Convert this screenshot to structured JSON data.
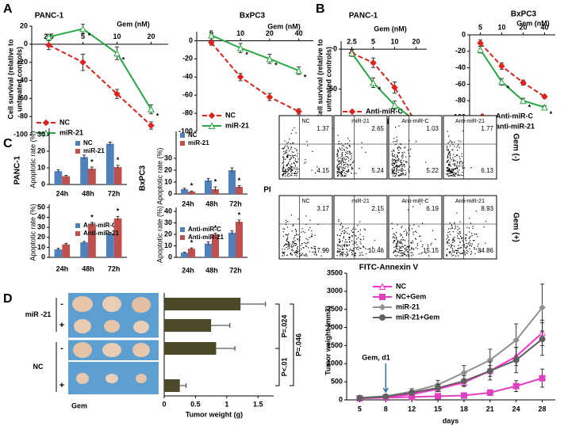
{
  "panels": [
    "A",
    "B",
    "C",
    "D"
  ],
  "flow": {
    "y_label": "PI",
    "x_label": "FITC-Annexin V",
    "rows": [
      {
        "label": "Gem (-)",
        "plots": [
          {
            "name": "NC",
            "upper_right": 1.37,
            "lower_right": 4.15
          },
          {
            "name": "miR-21",
            "upper_right": 2.65,
            "lower_right": 5.24
          },
          {
            "name": "Anti-miR-C",
            "upper_right": 1.03,
            "lower_right": 5.22
          },
          {
            "name": "Anti-miR-21",
            "upper_right": 1.77,
            "lower_right": 6.13
          }
        ]
      },
      {
        "label": "Gem (+)",
        "plots": [
          {
            "name": "NC",
            "upper_right": 3.17,
            "lower_right": 17.99
          },
          {
            "name": "miR-21",
            "upper_right": 2.15,
            "lower_right": 10.46
          },
          {
            "name": "Anti-miR-C",
            "upper_right": 6.19,
            "lower_right": 15.15
          },
          {
            "name": "Anti-miR-21",
            "upper_right": 8.93,
            "lower_right": 34.86
          }
        ]
      }
    ]
  },
  "chart_data": [
    {
      "type": "line",
      "title": "PANC-1",
      "x_label": "Gem (nM)",
      "y_label": [
        "Cell survival (relative to",
        "untreated controls)"
      ],
      "categories": [
        "2.5",
        "5",
        "10",
        "20"
      ],
      "ylim": [
        -100,
        20
      ],
      "yticks": [
        -100,
        -80,
        -60,
        -40,
        -20,
        0,
        20
      ],
      "series": [
        {
          "name": "NC",
          "color": "#e0201b",
          "marker": "diamond",
          "dashed": true,
          "values": [
            -1,
            -20,
            -55,
            -90
          ],
          "errors": [
            5,
            9,
            5,
            4
          ],
          "significance": [
            null,
            null,
            null,
            null
          ]
        },
        {
          "name": "miR-21",
          "color": "#27a844",
          "marker": "triangle",
          "dashed": false,
          "values": [
            8,
            17,
            -10,
            -72
          ],
          "errors": [
            3,
            5,
            7,
            5
          ],
          "significance": [
            null,
            "*",
            "*",
            "*"
          ]
        }
      ]
    },
    {
      "type": "line",
      "title": "BxPC3",
      "x_label": "Gem (nM)",
      "categories": [
        "5",
        "10",
        "20",
        "40"
      ],
      "ylim": [
        -100,
        10
      ],
      "yticks": [
        -100,
        -80,
        -60,
        -40,
        -20,
        0
      ],
      "series": [
        {
          "name": "NC",
          "color": "#e0201b",
          "marker": "diamond",
          "dashed": true,
          "values": [
            -2,
            -40,
            -62,
            -78
          ],
          "errors": [
            3,
            4,
            4,
            3
          ],
          "significance": [
            null,
            null,
            null,
            null
          ]
        },
        {
          "name": "miR-21",
          "color": "#27a844",
          "marker": "triangle",
          "dashed": false,
          "values": [
            6,
            -8,
            -20,
            -33
          ],
          "errors": [
            3,
            5,
            5,
            4
          ],
          "significance": [
            null,
            "*",
            "*",
            "*"
          ]
        }
      ]
    },
    {
      "type": "line",
      "title": "PANC-1",
      "x_label": "Gem (nM)",
      "y_label": [
        "Cell survival (relative to",
        "untreated controls)"
      ],
      "categories": [
        "2.5",
        "5",
        "10",
        "20"
      ],
      "ylim": [
        -100,
        10
      ],
      "yticks": [
        -100,
        -50,
        0
      ],
      "series": [
        {
          "name": "Anti-miR-C",
          "color": "#e0201b",
          "marker": "diamond",
          "dashed": true,
          "values": [
            -5,
            -17,
            -48,
            -92
          ],
          "errors": [
            4,
            6,
            7,
            6
          ],
          "significance": [
            null,
            null,
            null,
            null
          ]
        },
        {
          "name": "anti-miR-21",
          "color": "#27a844",
          "marker": "triangle",
          "dashed": false,
          "values": [
            -5,
            -42,
            -70,
            -90
          ],
          "errors": [
            4,
            6,
            5,
            5
          ],
          "significance": [
            null,
            "*",
            null,
            null
          ]
        }
      ]
    },
    {
      "type": "line",
      "title": "BxPC3",
      "x_label": "Gem (nM)",
      "categories": [
        "5",
        "10",
        "20",
        "40"
      ],
      "ylim": [
        -100,
        0
      ],
      "yticks": [
        -100,
        -80,
        -60,
        -40,
        -20,
        0
      ],
      "series": [
        {
          "name": "Anti-miR-C",
          "color": "#e0201b",
          "marker": "diamond",
          "dashed": true,
          "values": [
            -10,
            -38,
            -58,
            -75
          ],
          "errors": [
            4,
            4,
            3,
            2
          ],
          "significance": [
            null,
            null,
            null,
            null
          ]
        },
        {
          "name": "anti-miR-21",
          "color": "#27a844",
          "marker": "triangle",
          "dashed": false,
          "values": [
            -18,
            -57,
            -80,
            -88
          ],
          "errors": [
            4,
            4,
            3,
            2
          ],
          "significance": [
            null,
            "*",
            "*",
            "*"
          ]
        }
      ]
    },
    {
      "type": "bar",
      "side_label": "PANC-1",
      "y_label": "Apoptotic rate (%)",
      "categories": [
        "24h",
        "48h",
        "72h"
      ],
      "ylim": [
        0,
        30
      ],
      "yticks": [
        0,
        10,
        20,
        30
      ],
      "series": [
        {
          "name": "NC",
          "color": "#4f81bd",
          "values": [
            8,
            16.5,
            24.5
          ],
          "errors": [
            0.8,
            1.2,
            1
          ],
          "significance": [
            null,
            null,
            null
          ]
        },
        {
          "name": "miR-21",
          "color": "#c0504d",
          "values": [
            5,
            9.5,
            10.5
          ],
          "errors": [
            0.5,
            1,
            1
          ],
          "significance": [
            null,
            "*",
            "*"
          ]
        }
      ]
    },
    {
      "type": "bar",
      "y_label": "Apoptotic rate (%)",
      "categories": [
        "24h",
        "48h",
        "72h"
      ],
      "ylim": [
        0,
        50
      ],
      "yticks": [
        0,
        10,
        20,
        30,
        40,
        50
      ],
      "series": [
        {
          "name": "Anti-miR-C",
          "color": "#4f81bd",
          "values": [
            8,
            15,
            23.5
          ],
          "errors": [
            1,
            1,
            1.5
          ],
          "significance": [
            null,
            null,
            null
          ]
        },
        {
          "name": "Anti-miR-21",
          "color": "#c0504d",
          "values": [
            13,
            33,
            39
          ],
          "errors": [
            1,
            2,
            2
          ],
          "significance": [
            null,
            "*",
            "*"
          ]
        }
      ]
    },
    {
      "type": "bar",
      "side_label": "BxPC3",
      "y_label": "Apoptotic rate (%)",
      "categories": [
        "24h",
        "48h",
        "72h"
      ],
      "ylim": [
        0,
        30
      ],
      "yticks": [
        0,
        10,
        20,
        30
      ],
      "series": [
        {
          "name": "NC",
          "color": "#4f81bd",
          "values": [
            4,
            11.5,
            20
          ],
          "errors": [
            0.8,
            1.5,
            2
          ],
          "significance": [
            null,
            null,
            null
          ]
        },
        {
          "name": "miR-21",
          "color": "#c0504d",
          "values": [
            2,
            4,
            6
          ],
          "errors": [
            0.5,
            2,
            1
          ],
          "significance": [
            "*",
            "*",
            "*"
          ]
        }
      ]
    },
    {
      "type": "bar",
      "y_label": "Apoptotic rate (%)",
      "categories": [
        "24h",
        "48h",
        "72h"
      ],
      "ylim": [
        0,
        40
      ],
      "yticks": [
        0,
        10,
        20,
        30,
        40
      ],
      "series": [
        {
          "name": "Anti-miR-C",
          "color": "#4f81bd",
          "values": [
            4,
            12,
            21.5
          ],
          "errors": [
            0.5,
            1.5,
            1.5
          ],
          "significance": [
            null,
            null,
            null
          ]
        },
        {
          "name": "Anti-miR-21",
          "color": "#c0504d",
          "values": [
            7.5,
            20,
            31
          ],
          "errors": [
            0.7,
            1,
            1.5
          ],
          "significance": [
            "*",
            "*",
            "*"
          ]
        }
      ]
    },
    {
      "type": "barh",
      "x_label": "Tumor weight (g)",
      "row_label": "Gem",
      "row_groups": [
        "miR -21",
        "NC"
      ],
      "categories": [
        "-",
        "+",
        "-",
        "+"
      ],
      "values": [
        1.22,
        0.75,
        0.83,
        0.25
      ],
      "errors": [
        0.4,
        0.3,
        0.3,
        0.1
      ],
      "color": "#4d4a2a",
      "xlim": [
        0,
        1.75
      ],
      "xticks": [
        0,
        0.5,
        1,
        1.5
      ],
      "comparisons": [
        {
          "label": "P=.024",
          "rows": [
            0,
            2
          ]
        },
        {
          "label": "P=.046",
          "rows": [
            0,
            3
          ]
        },
        {
          "label": "P<.01",
          "rows": [
            2,
            3
          ]
        }
      ]
    },
    {
      "type": "line",
      "x_label": "days",
      "y_label": "Tumor weight (mm3)",
      "annotation": {
        "text": "Gem, d1",
        "category": 1
      },
      "categories": [
        "5",
        "8",
        "12",
        "15",
        "18",
        "21",
        "24",
        "28"
      ],
      "ylim": [
        0,
        3500
      ],
      "yticks": [
        0,
        500,
        1000,
        1500,
        2000,
        2500,
        3000,
        3500
      ],
      "series": [
        {
          "name": "NC",
          "color": "#ff33cc",
          "marker": "triangle",
          "dashed": false,
          "values": [
            50,
            80,
            150,
            300,
            480,
            800,
            1200,
            1850
          ],
          "errors": [
            10,
            20,
            40,
            60,
            100,
            150,
            250,
            350
          ]
        },
        {
          "name": "NC+Gem",
          "color": "#e040c0",
          "marker": "square",
          "dashed": false,
          "values": [
            40,
            60,
            80,
            100,
            120,
            200,
            380,
            600
          ],
          "errors": [
            10,
            15,
            20,
            30,
            40,
            80,
            150,
            250
          ]
        },
        {
          "name": "miR-21",
          "color": "#909090",
          "marker": "diamond",
          "dashed": false,
          "values": [
            60,
            100,
            230,
            420,
            750,
            1100,
            1650,
            2550
          ],
          "errors": [
            20,
            40,
            80,
            120,
            200,
            300,
            450,
            650
          ]
        },
        {
          "name": "miR-21+Gem",
          "color": "#606060",
          "marker": "circle",
          "dashed": false,
          "values": [
            50,
            90,
            200,
            330,
            520,
            800,
            1100,
            1680
          ],
          "errors": [
            15,
            30,
            60,
            100,
            150,
            250,
            350,
            450
          ]
        }
      ]
    }
  ]
}
